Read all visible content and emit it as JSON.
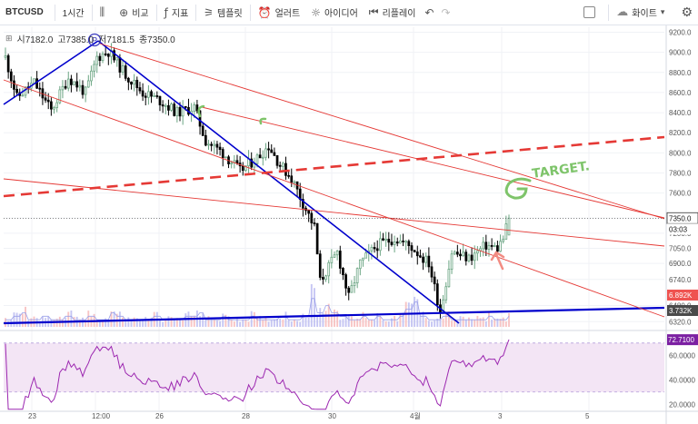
{
  "toolbar": {
    "symbol": "BTCUSD",
    "interval": "1시간",
    "compare_icon": "compare-icon",
    "compare": "비교",
    "indicators_icon": "indicators-icon",
    "indicators": "지표",
    "templates_icon": "templates-icon",
    "templates": "템플릿",
    "alerts_icon": "alarm-clock-icon",
    "alerts": "얼러트",
    "ideas_icon": "lightbulb-icon",
    "ideas": "아이디어",
    "replay_icon": "replay-icon",
    "replay": "리플레이",
    "undo_icon": "undo-icon",
    "redo_icon": "redo-icon",
    "theme_icon": "cloud-icon",
    "theme": "화이트",
    "settings_icon": "gear-icon"
  },
  "ohlc": {
    "open": "시7182.0",
    "high": "고7385.0",
    "low": "저7181.5",
    "close": "종7350.0"
  },
  "annotations": {
    "pivot_label": "P",
    "target": "TARGET."
  },
  "colors": {
    "up": "#6ba583",
    "down": "#000000",
    "blue_line": "#0000cc",
    "red_line": "#e53935",
    "rsi_line": "#9c27b0",
    "rsi_band": "#f3e5f5",
    "green_note": "#7ec46a",
    "salmon_arrow": "#f28b82"
  },
  "chart_data": [
    {
      "type": "candlestick",
      "symbol": "BTCUSD",
      "interval": "1시간",
      "ylim": [
        6250,
        9250
      ],
      "y_ticks": [
        "9200.0",
        "9000.0",
        "8800.0",
        "8600.0",
        "8400.0",
        "8200.0",
        "8000.0",
        "7800.0",
        "7600.0",
        "7350.0",
        "7200.0",
        "7050.0",
        "6900.0",
        "6740.0",
        "6480.0",
        "6320.0"
      ],
      "x_ticks": [
        "23",
        "12:00",
        "26",
        "28",
        "30",
        "4월",
        "3",
        "5"
      ],
      "last_price": "7350.0",
      "countdown": "03:03",
      "path": [
        [
          0,
          8950
        ],
        [
          4,
          8550
        ],
        [
          10,
          8700
        ],
        [
          16,
          8420
        ],
        [
          22,
          8750
        ],
        [
          28,
          8600
        ],
        [
          32,
          8950
        ],
        [
          36,
          9010
        ],
        [
          42,
          8780
        ],
        [
          48,
          8600
        ],
        [
          54,
          8520
        ],
        [
          60,
          8400
        ],
        [
          66,
          8450
        ],
        [
          70,
          8120
        ],
        [
          76,
          8000
        ],
        [
          82,
          7820
        ],
        [
          88,
          7950
        ],
        [
          92,
          8070
        ],
        [
          96,
          7880
        ],
        [
          100,
          7750
        ],
        [
          104,
          7500
        ],
        [
          108,
          7260
        ],
        [
          110,
          6720
        ],
        [
          116,
          7010
        ],
        [
          120,
          6560
        ],
        [
          124,
          6900
        ],
        [
          130,
          7080
        ],
        [
          136,
          7150
        ],
        [
          142,
          7060
        ],
        [
          148,
          6900
        ],
        [
          152,
          6420
        ],
        [
          156,
          7010
        ],
        [
          162,
          6950
        ],
        [
          168,
          7080
        ],
        [
          172,
          7050
        ],
        [
          174,
          7150
        ],
        [
          176,
          7350
        ]
      ],
      "x_span": 176
    },
    {
      "type": "bar",
      "name": "volume",
      "label": "3.732K",
      "ylim": [
        0,
        12
      ],
      "ref_value": "6.892K",
      "profile": [
        2,
        3,
        4,
        2,
        2,
        3,
        2,
        2,
        3,
        2,
        2,
        3,
        2,
        2,
        4,
        3,
        2,
        2,
        2,
        2,
        3,
        2,
        2,
        2,
        3,
        3,
        4,
        2,
        2,
        3,
        2,
        2,
        2,
        3,
        2,
        2,
        2,
        3,
        2,
        2,
        3,
        8,
        4,
        6,
        4,
        3,
        2,
        2,
        3,
        2,
        3,
        2,
        2,
        3,
        5,
        7,
        3,
        2,
        2,
        3,
        2,
        2,
        2,
        2,
        2,
        3,
        2,
        2,
        3
      ]
    },
    {
      "type": "line",
      "name": "RSI",
      "label": "72.7100",
      "ylim": [
        15,
        78
      ],
      "band": [
        30,
        70
      ],
      "y_ticks": [
        "60.0000",
        "40.0000",
        "20.0000"
      ]
    }
  ]
}
